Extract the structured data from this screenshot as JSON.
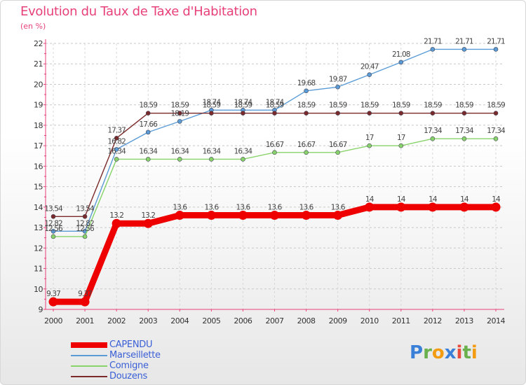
{
  "header": {
    "title": "Evolution du Taux de Taxe d'Habitation",
    "unit_label": "(en %)"
  },
  "chart_data": {
    "type": "line",
    "title": "Evolution du Taux de Taxe d'Habitation",
    "ylabel": "(en %)",
    "xlabel": "",
    "x": [
      "2000",
      "2001",
      "2002",
      "2003",
      "2004",
      "2005",
      "2006",
      "2007",
      "2008",
      "2009",
      "2010",
      "2011",
      "2012",
      "2013",
      "2014"
    ],
    "ylim": [
      9,
      22
    ],
    "yticks": [
      9,
      10,
      11,
      12,
      13,
      14,
      15,
      16,
      17,
      18,
      19,
      20,
      21,
      22
    ],
    "grid": "horizontal-dashed",
    "legend_position": "bottom-left",
    "series": [
      {
        "name": "CAPENDU",
        "color": "#ee0000",
        "values": [
          9.37,
          9.37,
          13.2,
          13.2,
          13.6,
          13.6,
          13.6,
          13.6,
          13.6,
          13.6,
          14,
          14,
          14,
          14,
          14
        ],
        "labels": [
          "9.37",
          "9.37",
          "13.2",
          "13.2",
          "13.6",
          "13.6",
          "13.6",
          "13.6",
          "13.6",
          "13.6",
          "14",
          "14",
          "14",
          "14",
          "14"
        ]
      },
      {
        "name": "Marseillette",
        "color": "#5a9bd5",
        "values": [
          12.82,
          12.82,
          16.82,
          17.66,
          18.19,
          18.74,
          18.74,
          18.74,
          19.68,
          19.87,
          20.47,
          21.08,
          21.71,
          21.71,
          21.71
        ],
        "labels": [
          "12.82",
          "12.82",
          "16.82",
          "17.66",
          "18.19",
          "18.74",
          "18.74",
          "18.74",
          "19.68",
          "19.87",
          "20.47",
          "21.08",
          "21.71",
          "21.71",
          "21.71"
        ]
      },
      {
        "name": "Comigne",
        "color": "#88d46a",
        "values": [
          12.56,
          12.56,
          16.34,
          16.34,
          16.34,
          16.34,
          16.34,
          16.67,
          16.67,
          16.67,
          17,
          17,
          17.34,
          17.34,
          17.34
        ],
        "labels": [
          "12.56",
          "12.56",
          "16.34",
          "16.34",
          "16.34",
          "16.34",
          "16.34",
          "16.67",
          "16.67",
          "16.67",
          "17",
          "17",
          "17.34",
          "17.34",
          "17.34"
        ]
      },
      {
        "name": "Douzens",
        "color": "#7a2a2a",
        "values": [
          13.54,
          13.54,
          17.37,
          18.59,
          18.59,
          18.59,
          18.59,
          18.59,
          18.59,
          18.59,
          18.59,
          18.59,
          18.59,
          18.59,
          18.59
        ],
        "labels": [
          "13.54",
          "13.54",
          "17.37",
          "18.59",
          "18.59",
          "18.59",
          "18.59",
          "18.59",
          "18.59",
          "18.59",
          "18.59",
          "18.59",
          "18.59",
          "18.59",
          "18.59"
        ]
      }
    ]
  },
  "logo": {
    "parts": [
      {
        "text": "P",
        "color": "#3a7fd8"
      },
      {
        "text": "r",
        "color": "#6ab04c"
      },
      {
        "text": "o",
        "color": "#f39c12"
      },
      {
        "text": "x",
        "color": "#3a7fd8"
      },
      {
        "text": "i",
        "color": "#e74c3c"
      },
      {
        "text": "t",
        "color": "#6ab04c"
      },
      {
        "text": "i",
        "color": "#f39c12"
      }
    ]
  }
}
